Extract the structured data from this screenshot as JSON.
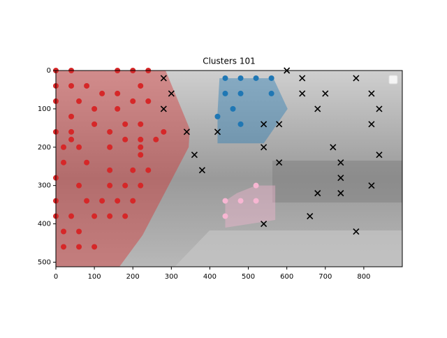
{
  "chart_data": {
    "type": "scatter",
    "title": "Clusters 101",
    "xlim": [
      0,
      900
    ],
    "ylim": [
      512,
      0
    ],
    "xticks": [
      0,
      100,
      200,
      300,
      400,
      500,
      600,
      700,
      800
    ],
    "yticks": [
      0,
      100,
      200,
      300,
      400,
      500
    ],
    "series": [
      {
        "color": "#d62728",
        "marker": "o",
        "x": [
          0,
          40,
          160,
          200,
          240,
          0,
          40,
          80,
          220,
          120,
          160,
          0,
          60,
          200,
          240,
          100,
          160,
          40,
          100,
          180,
          220,
          0,
          40,
          140,
          280,
          40,
          180,
          220,
          260,
          20,
          60,
          140,
          220,
          220,
          20,
          80,
          140,
          200,
          240,
          0,
          60,
          140,
          180,
          220,
          0,
          80,
          120,
          160,
          200,
          0,
          40,
          100,
          140,
          180,
          20,
          60,
          20,
          60,
          100
        ],
        "values": [
          0,
          0,
          0,
          0,
          0,
          40,
          40,
          40,
          40,
          60,
          60,
          80,
          80,
          80,
          80,
          100,
          100,
          120,
          140,
          140,
          140,
          160,
          160,
          160,
          160,
          180,
          180,
          180,
          180,
          200,
          200,
          200,
          200,
          220,
          240,
          240,
          260,
          260,
          260,
          280,
          300,
          300,
          300,
          300,
          340,
          340,
          340,
          340,
          340,
          380,
          380,
          380,
          380,
          380,
          420,
          420,
          460,
          460,
          460
        ],
        "hull_x": [
          0,
          285,
          348,
          345,
          225,
          165,
          0
        ],
        "hull_y": [
          0,
          0,
          153,
          200,
          430,
          512,
          512
        ]
      },
      {
        "color": "#1f77b4",
        "marker": "o",
        "x": [
          440,
          480,
          520,
          560,
          440,
          480,
          560,
          460,
          420,
          480
        ],
        "values": [
          20,
          20,
          20,
          20,
          60,
          60,
          60,
          100,
          120,
          140
        ],
        "hull_x": [
          425,
          565,
          602,
          540,
          420,
          420
        ],
        "hull_y": [
          20,
          20,
          100,
          190,
          190,
          110
        ]
      },
      {
        "color": "#f7b6d2",
        "marker": "o",
        "x": [
          520,
          440,
          480,
          520,
          440
        ],
        "values": [
          300,
          340,
          340,
          340,
          380
        ],
        "hull_x": [
          470,
          520,
          570,
          570,
          440,
          440
        ],
        "hull_y": [
          320,
          300,
          300,
          390,
          410,
          340
        ]
      },
      {
        "color": "#000000",
        "marker": "x",
        "x": [
          280,
          300,
          280,
          340,
          420,
          360,
          380,
          540,
          580,
          540,
          580,
          540,
          600,
          640,
          640,
          700,
          680,
          780,
          820,
          840,
          820,
          720,
          840,
          740,
          740,
          820,
          680,
          740,
          660,
          780
        ],
        "values": [
          20,
          60,
          100,
          160,
          160,
          220,
          260,
          140,
          140,
          200,
          240,
          400,
          0,
          20,
          60,
          60,
          100,
          20,
          60,
          100,
          140,
          200,
          220,
          240,
          280,
          300,
          320,
          320,
          380,
          420
        ]
      }
    ]
  }
}
